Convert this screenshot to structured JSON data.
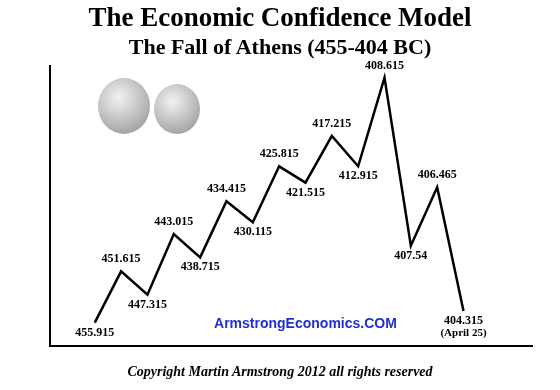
{
  "chart_data": {
    "type": "line",
    "title": "The Economic Confidence Model",
    "subtitle": "The Fall of Athens (455-404 BC)",
    "categories": [
      "455.915",
      "451.615",
      "447.315",
      "443.015",
      "438.715",
      "434.415",
      "430.115",
      "425.815",
      "421.515",
      "417.215",
      "412.915",
      "408.615",
      "407.54",
      "406.465",
      "404.315"
    ],
    "values": [
      10,
      32,
      22,
      48,
      38,
      62,
      53,
      77,
      70,
      90,
      77,
      115,
      43,
      68,
      15
    ],
    "color": "#000000",
    "ylim": [
      0,
      120
    ],
    "grid": false,
    "tick_labels": false,
    "annotations": [
      {
        "text": "(April 25)",
        "category": "404.315"
      }
    ],
    "watermark": "ArmstrongEconomics.COM",
    "copyright": "Copyright Martin Armstrong 2012 all rights reserved"
  }
}
